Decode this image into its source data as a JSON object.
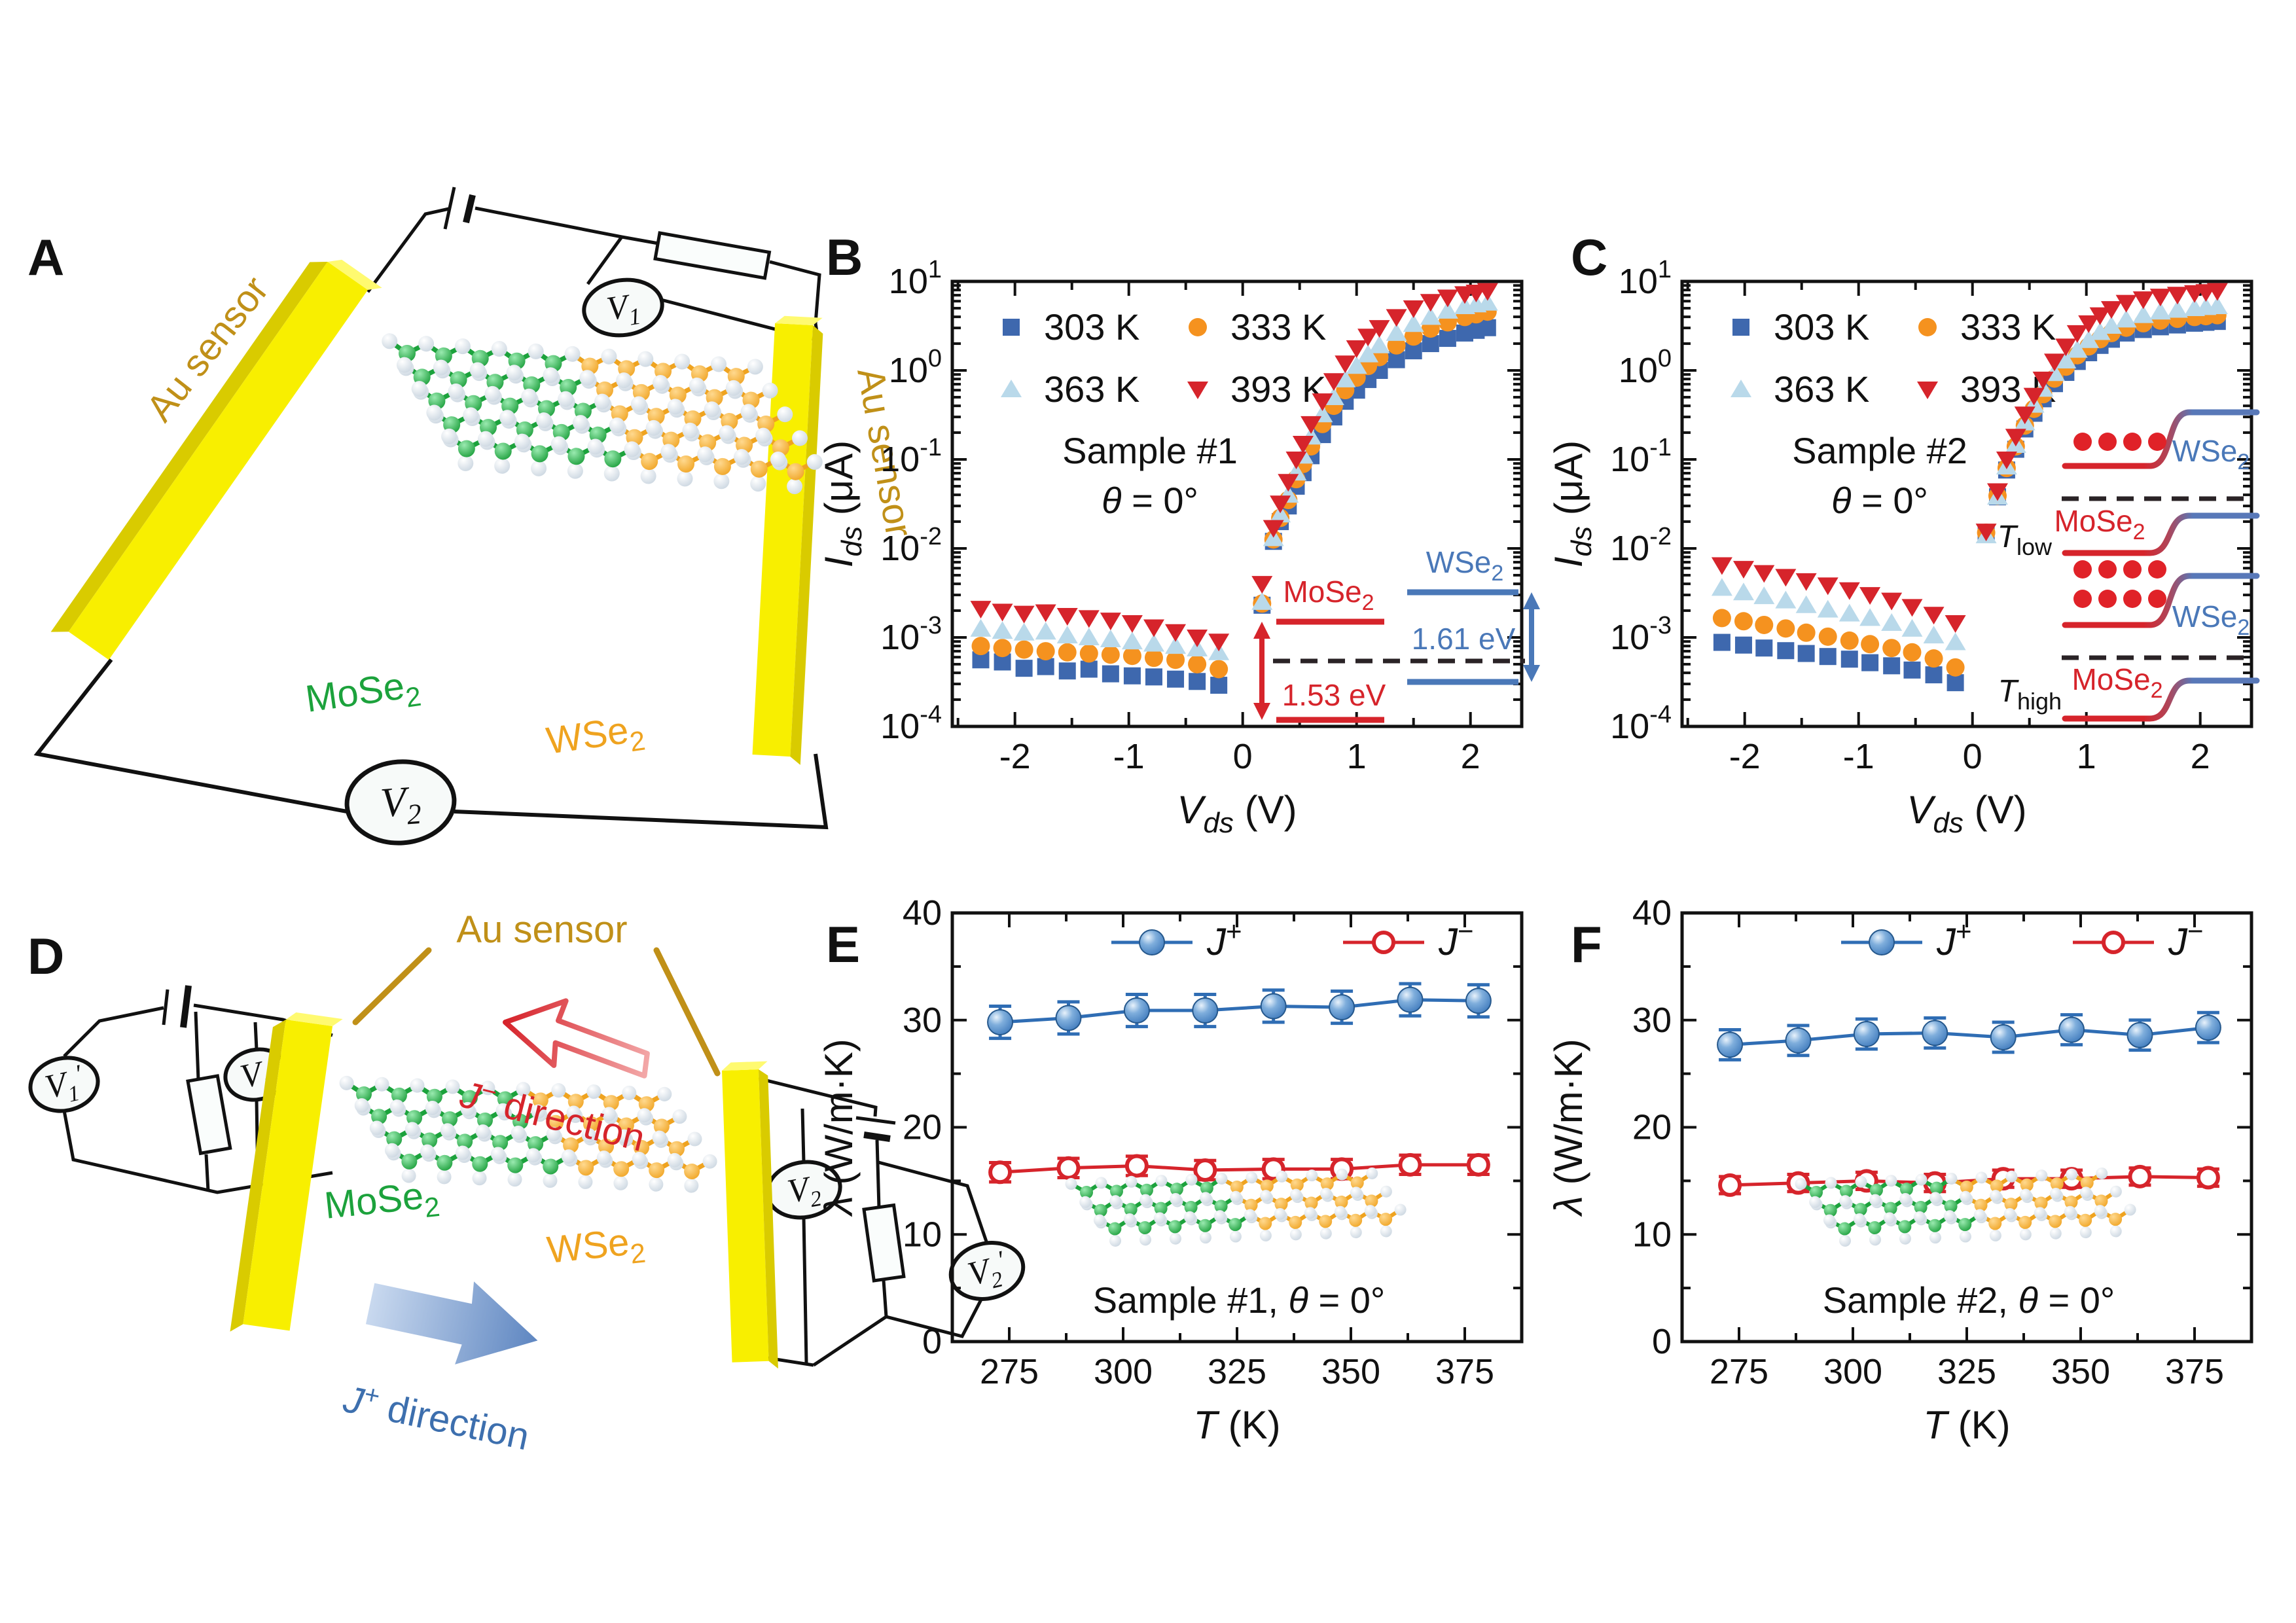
{
  "panels": {
    "a": "A",
    "b": "B",
    "c": "C",
    "d": "D",
    "e": "E",
    "f": "F"
  },
  "colors": {
    "blue": "#3E68AE",
    "orange": "#F5921F",
    "lightblue": "#B9D9EA",
    "red": "#D6242B",
    "gold_label": "#C09018",
    "au_yellow": "#F8EF00",
    "au_side": "#D9CB00",
    "au_top": "#FFFA70",
    "green": "#1CA23C",
    "wse_orange": "#EFA31F",
    "sphere_blue": "#2F6DB4",
    "se_gray": "#C7D3DE",
    "band_red": "#D6242B",
    "band_blue": "#4A78B8",
    "black": "#111111"
  },
  "panel_a": {
    "au_sensor_left": "Au sensor",
    "au_sensor_right": "Au sensor",
    "mose2": {
      "main": "MoSe",
      "sub": "2"
    },
    "wse2": {
      "main": "WSe",
      "sub": "2"
    },
    "v1": {
      "main": "V",
      "sub": "1"
    },
    "v2": {
      "main": "V",
      "sub": "2"
    }
  },
  "panel_d": {
    "au_sensor": "Au sensor",
    "j_minus": {
      "main": "J",
      "sup": "−",
      "rest": " direction"
    },
    "j_plus": {
      "main": "J",
      "sup": "+",
      "rest": " direction"
    },
    "mose2": {
      "main": "MoSe",
      "sub": "2"
    },
    "wse2": {
      "main": "WSe",
      "sub": "2"
    },
    "v1": {
      "main": "V",
      "sub": "1",
      "prime": ""
    },
    "v1p": {
      "main": "V",
      "sub": "1",
      "prime": "′"
    },
    "v2": {
      "main": "V",
      "sub": "2",
      "prime": ""
    },
    "v2p": {
      "main": "V",
      "sub": "2",
      "prime": "′"
    }
  },
  "chart_data": [
    {
      "id": "b",
      "type": "scatter-log",
      "xlabel": {
        "main": "V",
        "sub": "ds",
        "unit": " (V)"
      },
      "ylabel": {
        "main": "I",
        "sub": "ds",
        "unit": " (μA)"
      },
      "xlim": [
        -2.55,
        2.45
      ],
      "xticks": [
        -2,
        -1,
        0,
        1,
        2
      ],
      "x_minor_step": 0.5,
      "ylog": true,
      "ydec_top": 1,
      "ydec_bottom": -4,
      "sample": {
        "line1": "Sample #1",
        "theta": "θ",
        "rest": " = 0°"
      },
      "legend": [
        {
          "label": "303 K",
          "marker": "square",
          "color": "#3E68AE"
        },
        {
          "label": "333 K",
          "marker": "circle",
          "color": "#F5921F"
        },
        {
          "label": "363 K",
          "marker": "tri-up",
          "color": "#B9D9EA"
        },
        {
          "label": "393 K",
          "marker": "tri-down",
          "color": "#D6242B"
        }
      ],
      "series": [
        {
          "name": "303 K",
          "marker": "square",
          "color": "#3E68AE",
          "x": [
            -2.3,
            -2.11,
            -1.92,
            -1.73,
            -1.54,
            -1.35,
            -1.16,
            -0.97,
            -0.78,
            -0.59,
            -0.4,
            -0.21,
            0.17,
            0.27,
            0.33,
            0.4,
            0.47,
            0.53,
            0.6,
            0.7,
            0.8,
            0.9,
            1.0,
            1.1,
            1.2,
            1.35,
            1.5,
            1.65,
            1.8,
            1.95,
            2.05,
            2.15
          ],
          "y": [
            0.00056,
            0.00053,
            0.00045,
            0.00047,
            0.00042,
            0.00044,
            0.00039,
            0.00037,
            0.00036,
            0.00034,
            0.00032,
            0.00029,
            0.0023,
            0.012,
            0.02,
            0.03,
            0.05,
            0.071,
            0.11,
            0.19,
            0.3,
            0.45,
            0.6,
            0.79,
            1.0,
            1.32,
            1.66,
            2.0,
            2.29,
            2.63,
            2.82,
            3.02
          ]
        },
        {
          "name": "333 K",
          "marker": "circle",
          "color": "#F5921F",
          "x": [
            -2.3,
            -2.11,
            -1.92,
            -1.73,
            -1.54,
            -1.35,
            -1.16,
            -0.97,
            -0.78,
            -0.59,
            -0.4,
            -0.21,
            0.17,
            0.27,
            0.33,
            0.4,
            0.47,
            0.53,
            0.6,
            0.7,
            0.8,
            0.9,
            1.0,
            1.1,
            1.2,
            1.35,
            1.5,
            1.65,
            1.8,
            1.95,
            2.05,
            2.15
          ],
          "y": [
            0.0008,
            0.00076,
            0.00073,
            0.0007,
            0.00068,
            0.00066,
            0.00064,
            0.00062,
            0.00059,
            0.00056,
            0.0005,
            0.00044,
            0.0024,
            0.0126,
            0.022,
            0.035,
            0.06,
            0.089,
            0.14,
            0.25,
            0.4,
            0.6,
            0.83,
            1.12,
            1.41,
            1.91,
            2.4,
            2.95,
            3.47,
            3.98,
            4.27,
            4.57
          ]
        },
        {
          "name": "363 K",
          "marker": "tri-up",
          "color": "#B9D9EA",
          "x": [
            -2.3,
            -2.11,
            -1.92,
            -1.73,
            -1.54,
            -1.35,
            -1.16,
            -0.97,
            -0.78,
            -0.59,
            -0.4,
            -0.21,
            0.17,
            0.27,
            0.33,
            0.4,
            0.47,
            0.53,
            0.6,
            0.7,
            0.8,
            0.9,
            1.0,
            1.1,
            1.2,
            1.35,
            1.5,
            1.65,
            1.8,
            1.95,
            2.05,
            2.15
          ],
          "y": [
            0.00125,
            0.00118,
            0.00113,
            0.00116,
            0.00105,
            0.001,
            0.00095,
            0.0009,
            0.00085,
            0.0008,
            0.00075,
            0.00068,
            0.0025,
            0.013,
            0.024,
            0.04,
            0.071,
            0.11,
            0.18,
            0.32,
            0.5,
            0.79,
            1.12,
            1.51,
            1.91,
            2.63,
            3.31,
            3.98,
            4.68,
            5.25,
            5.5,
            5.75
          ]
        },
        {
          "name": "393 K",
          "marker": "tri-down",
          "color": "#D6242B",
          "x": [
            -2.3,
            -2.11,
            -1.92,
            -1.73,
            -1.54,
            -1.35,
            -1.16,
            -0.97,
            -0.78,
            -0.59,
            -0.4,
            -0.21,
            0.17,
            0.27,
            0.33,
            0.4,
            0.47,
            0.53,
            0.6,
            0.7,
            0.8,
            0.9,
            1.0,
            1.1,
            1.2,
            1.35,
            1.5,
            1.65,
            1.8,
            1.95,
            2.05,
            2.15
          ],
          "y": [
            0.0021,
            0.00195,
            0.00185,
            0.00192,
            0.00175,
            0.00165,
            0.00155,
            0.00145,
            0.0013,
            0.00115,
            0.001,
            0.0009,
            0.004,
            0.017,
            0.032,
            0.056,
            0.1,
            0.15,
            0.25,
            0.45,
            0.76,
            1.2,
            1.78,
            2.4,
            3.0,
            3.98,
            5.0,
            5.89,
            6.6,
            7.2,
            7.5,
            7.8
          ]
        }
      ],
      "inset_band": {
        "mose2": {
          "main": "MoSe",
          "sub": "2"
        },
        "wse2": {
          "main": "WSe",
          "sub": "2"
        },
        "gap_mose": "1.53 eV",
        "gap_wse": "1.61 eV",
        "red": "#D6242B",
        "blue": "#4A78B8"
      }
    },
    {
      "id": "c",
      "type": "scatter-log",
      "xlabel": {
        "main": "V",
        "sub": "ds",
        "unit": " (V)"
      },
      "ylabel": {
        "main": "I",
        "sub": "ds",
        "unit": " (μA)"
      },
      "xlim": [
        -2.55,
        2.45
      ],
      "xticks": [
        -2,
        -1,
        0,
        1,
        2
      ],
      "x_minor_step": 0.5,
      "ylog": true,
      "ydec_top": 1,
      "ydec_bottom": -4,
      "sample": {
        "line1": "Sample #2",
        "theta": "θ",
        "rest": " = 0°"
      },
      "legend": [
        {
          "label": "303 K",
          "marker": "square",
          "color": "#3E68AE"
        },
        {
          "label": "333 K",
          "marker": "circle",
          "color": "#F5921F"
        },
        {
          "label": "363 K",
          "marker": "tri-up",
          "color": "#B9D9EA"
        },
        {
          "label": "393 K",
          "marker": "tri-down",
          "color": "#D6242B"
        }
      ],
      "series": [
        {
          "name": "303 K",
          "marker": "square",
          "color": "#3E68AE",
          "x": [
            -2.2,
            -2.01,
            -1.83,
            -1.64,
            -1.46,
            -1.27,
            -1.08,
            -0.9,
            -0.71,
            -0.53,
            -0.34,
            -0.15,
            0.12,
            0.22,
            0.3,
            0.38,
            0.46,
            0.54,
            0.62,
            0.72,
            0.82,
            0.92,
            1.02,
            1.12,
            1.22,
            1.35,
            1.5,
            1.65,
            1.8,
            1.95,
            2.05,
            2.15
          ],
          "y": [
            0.00088,
            0.00082,
            0.00076,
            0.00071,
            0.00066,
            0.00061,
            0.00057,
            0.00052,
            0.00048,
            0.00043,
            0.00038,
            0.00031,
            0.015,
            0.038,
            0.076,
            0.13,
            0.22,
            0.33,
            0.48,
            0.71,
            0.95,
            1.26,
            1.58,
            1.91,
            2.24,
            2.63,
            2.88,
            3.09,
            3.24,
            3.39,
            3.47,
            3.55
          ]
        },
        {
          "name": "333 K",
          "marker": "circle",
          "color": "#F5921F",
          "x": [
            -2.2,
            -2.01,
            -1.83,
            -1.64,
            -1.46,
            -1.27,
            -1.08,
            -0.9,
            -0.71,
            -0.53,
            -0.34,
            -0.15,
            0.12,
            0.22,
            0.3,
            0.38,
            0.46,
            0.54,
            0.62,
            0.72,
            0.82,
            0.92,
            1.02,
            1.12,
            1.22,
            1.35,
            1.5,
            1.65,
            1.8,
            1.95,
            2.05,
            2.15
          ],
          "y": [
            0.00165,
            0.00152,
            0.00138,
            0.00126,
            0.00113,
            0.00102,
            0.00092,
            0.00084,
            0.00076,
            0.00068,
            0.00058,
            0.00046,
            0.015,
            0.039,
            0.08,
            0.14,
            0.24,
            0.37,
            0.54,
            0.81,
            1.1,
            1.48,
            1.86,
            2.24,
            2.63,
            3.02,
            3.39,
            3.63,
            3.8,
            3.98,
            4.07,
            4.17
          ]
        },
        {
          "name": "363 K",
          "marker": "tri-up",
          "color": "#B9D9EA",
          "x": [
            -2.2,
            -2.01,
            -1.83,
            -1.64,
            -1.46,
            -1.27,
            -1.08,
            -0.9,
            -0.71,
            -0.53,
            -0.34,
            -0.15,
            0.12,
            0.22,
            0.3,
            0.38,
            0.46,
            0.54,
            0.62,
            0.72,
            0.82,
            0.92,
            1.02,
            1.12,
            1.22,
            1.35,
            1.5,
            1.65,
            1.8,
            1.95,
            2.05,
            2.15
          ],
          "y": [
            0.0036,
            0.0032,
            0.0029,
            0.0026,
            0.0023,
            0.00205,
            0.00185,
            0.00165,
            0.00145,
            0.00125,
            0.00105,
            0.00088,
            0.014,
            0.038,
            0.083,
            0.145,
            0.26,
            0.41,
            0.62,
            0.93,
            1.29,
            1.7,
            2.19,
            2.69,
            3.16,
            3.72,
            4.17,
            4.57,
            4.79,
            5.0,
            5.13,
            5.25
          ]
        },
        {
          "name": "393 K",
          "marker": "tri-down",
          "color": "#D6242B",
          "x": [
            -2.2,
            -2.01,
            -1.83,
            -1.64,
            -1.46,
            -1.27,
            -1.08,
            -0.9,
            -0.71,
            -0.53,
            -0.34,
            -0.15,
            0.12,
            0.22,
            0.3,
            0.38,
            0.46,
            0.54,
            0.62,
            0.72,
            0.82,
            0.92,
            1.02,
            1.12,
            1.22,
            1.35,
            1.5,
            1.65,
            1.8,
            1.95,
            2.05,
            2.15
          ],
          "y": [
            0.0065,
            0.0059,
            0.0053,
            0.0048,
            0.0043,
            0.00385,
            0.0034,
            0.003,
            0.0026,
            0.0022,
            0.0018,
            0.00145,
            0.0155,
            0.044,
            0.1,
            0.18,
            0.32,
            0.52,
            0.79,
            1.26,
            1.86,
            2.63,
            3.39,
            4.17,
            4.9,
            5.75,
            6.3,
            6.76,
            7.1,
            7.4,
            7.6,
            7.8
          ]
        }
      ],
      "insets": [
        {
          "t": {
            "main": "T",
            "sub": "low"
          },
          "dots": 4,
          "wse2": {
            "main": "WSe",
            "sub": "2"
          },
          "mose2": {
            "main": "MoSe",
            "sub": "2"
          }
        },
        {
          "t": {
            "main": "T",
            "sub": "high"
          },
          "dots": 8,
          "wse2": {
            "main": "WSe",
            "sub": "2"
          },
          "mose2": {
            "main": "MoSe",
            "sub": "2"
          }
        }
      ]
    },
    {
      "id": "e",
      "type": "line-scatter",
      "xlabel": {
        "main": "T",
        "unit": " (K)"
      },
      "ylabel": {
        "main": "λ",
        "unit": " (W/m·K)"
      },
      "xlim": [
        262.5,
        387.5
      ],
      "xticks": [
        275,
        300,
        325,
        350,
        375
      ],
      "x_minor_step": 12.5,
      "ylim": [
        0,
        40
      ],
      "yticks": [
        0,
        10,
        20,
        30,
        40
      ],
      "y_minor_step": 5,
      "sample": {
        "line1": "Sample #1,  ",
        "theta": "θ",
        "rest": " = 0°"
      },
      "legend": [
        {
          "label": {
            "main": "J",
            "sup": "+"
          },
          "marker": "sphere",
          "color": "#2F6DB4"
        },
        {
          "label": {
            "main": "J",
            "sup": "−"
          },
          "marker": "open-circle",
          "color": "#D6242B"
        }
      ],
      "series": [
        {
          "name": "J+",
          "marker": "sphere",
          "color": "#2F6DB4",
          "line": true,
          "x": [
            273,
            288,
            303,
            318,
            333,
            348,
            363,
            378
          ],
          "y": [
            29.8,
            30.2,
            30.9,
            30.9,
            31.3,
            31.2,
            31.9,
            31.8
          ],
          "err": 1.5
        },
        {
          "name": "J−",
          "marker": "open-circle",
          "color": "#D6242B",
          "line": true,
          "x": [
            273,
            288,
            303,
            318,
            333,
            348,
            363,
            378
          ],
          "y": [
            15.8,
            16.2,
            16.4,
            16.0,
            16.1,
            16.1,
            16.5,
            16.5
          ],
          "err": 0.9
        }
      ],
      "lattice_inset": true
    },
    {
      "id": "f",
      "type": "line-scatter",
      "xlabel": {
        "main": "T",
        "unit": " (K)"
      },
      "ylabel": {
        "main": "λ",
        "unit": " (W/m·K)"
      },
      "xlim": [
        262.5,
        387.5
      ],
      "xticks": [
        275,
        300,
        325,
        350,
        375
      ],
      "x_minor_step": 12.5,
      "ylim": [
        0,
        40
      ],
      "yticks": [
        0,
        10,
        20,
        30,
        40
      ],
      "y_minor_step": 5,
      "sample": {
        "line1": "Sample #2,  ",
        "theta": "θ",
        "rest": " = 0°"
      },
      "legend": [
        {
          "label": {
            "main": "J",
            "sup": "+"
          },
          "marker": "sphere",
          "color": "#2F6DB4"
        },
        {
          "label": {
            "main": "J",
            "sup": "−"
          },
          "marker": "open-circle",
          "color": "#D6242B"
        }
      ],
      "series": [
        {
          "name": "J+",
          "marker": "sphere",
          "color": "#2F6DB4",
          "line": true,
          "x": [
            273,
            288,
            303,
            318,
            333,
            348,
            363,
            378
          ],
          "y": [
            27.7,
            28.1,
            28.7,
            28.8,
            28.4,
            29.1,
            28.6,
            29.3
          ],
          "err": 1.4
        },
        {
          "name": "J−",
          "marker": "open-circle",
          "color": "#D6242B",
          "line": true,
          "x": [
            273,
            288,
            303,
            318,
            333,
            348,
            363,
            378
          ],
          "y": [
            14.6,
            14.8,
            15.0,
            14.8,
            15.2,
            15.2,
            15.4,
            15.3
          ],
          "err": 0.8
        }
      ],
      "lattice_inset": true
    }
  ]
}
